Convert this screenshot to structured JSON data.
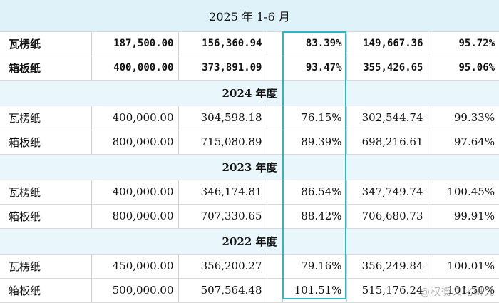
{
  "title": "2025 年 1-6 月",
  "sections": [
    {
      "year_label": null,
      "rows": [
        {
          "product": "瓦楞纸",
          "c1": "187,500.00",
          "c2": "156,360.94",
          "c3": "",
          "c4": "83.39%",
          "c5": "149,667.36",
          "c6": "95.72%"
        },
        {
          "product": "箱板纸",
          "c1": "400,000.00",
          "c2": "373,891.09",
          "c3": "",
          "c4": "93.47%",
          "c5": "355,426.65",
          "c6": "95.06%"
        }
      ]
    },
    {
      "year_label": "2024 年度",
      "rows": [
        {
          "product": "瓦楞纸",
          "c1": "400,000.00",
          "c2": "304,598.18",
          "c3": "",
          "c4": "76.15%",
          "c5": "302,544.74",
          "c6": "99.33%"
        },
        {
          "product": "箱板纸",
          "c1": "800,000.00",
          "c2": "715,080.89",
          "c3": "",
          "c4": "89.39%",
          "c5": "698,216.61",
          "c6": "97.64%"
        }
      ]
    },
    {
      "year_label": "2023 年度",
      "rows": [
        {
          "product": "瓦楞纸",
          "c1": "400,000.00",
          "c2": "346,174.81",
          "c3": "",
          "c4": "86.54%",
          "c5": "347,749.74",
          "c6": "100.45%"
        },
        {
          "product": "箱板纸",
          "c1": "800,000.00",
          "c2": "707,330.65",
          "c3": "",
          "c4": "88.42%",
          "c5": "706,680.73",
          "c6": "99.91%"
        }
      ]
    },
    {
      "year_label": "2022 年度",
      "rows": [
        {
          "product": "瓦楞纸",
          "c1": "450,000.00",
          "c2": "356,200.27",
          "c3": "",
          "c4": "79.16%",
          "c5": "356,249.84",
          "c6": "100.01%"
        },
        {
          "product": "箱板纸",
          "c1": "500,000.00",
          "c2": "507,564.48",
          "c3": "",
          "c4": "101.51%",
          "c5": "515,176.24",
          "c6": "101.50%"
        }
      ]
    }
  ],
  "watermark": "@权衡文化研究",
  "colors": {
    "highlight_border": "#2bb7c4",
    "header_bg": "#dff2fa",
    "year_bg": "#e9f6fc"
  }
}
